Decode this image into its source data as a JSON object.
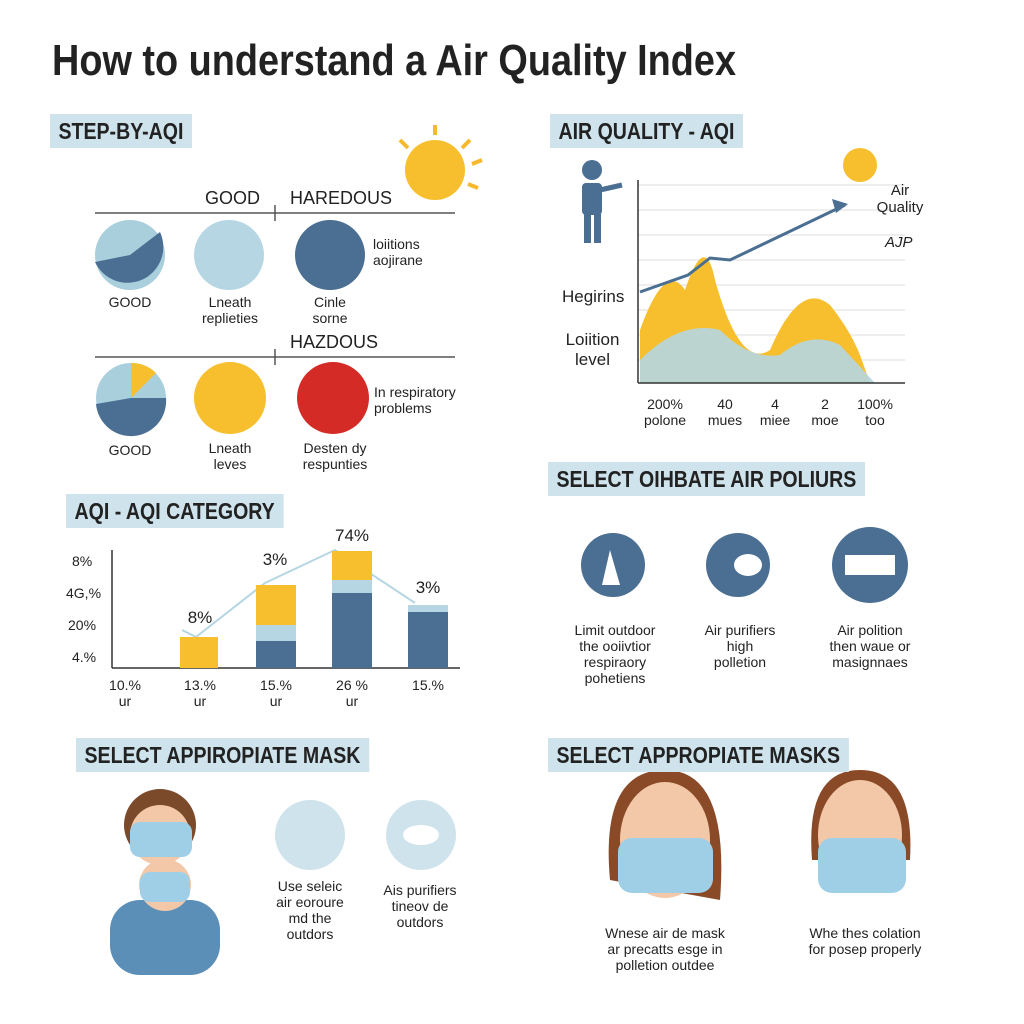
{
  "title": "How to understand a Air Quality Index",
  "step": {
    "heading": "STEP-BY-AQI",
    "scale1": [
      "GOOD",
      "HAREDOUS"
    ],
    "row1": [
      "GOOD",
      "Lneath\nreplieties",
      "Cinle\nsorne",
      "loiitions\naojirane"
    ],
    "scale2": "HAZDOUS",
    "row2": [
      "GOOD",
      "Lneath\nleves",
      "Desten dy\nrespunties",
      "In respiratory\nproblems"
    ]
  },
  "aqi": {
    "heading": "AIR QUALITY - AQI",
    "labels": [
      "Air\nQuality",
      "AJP",
      "Hegirins",
      "Loiition\nlevel"
    ],
    "x": [
      "200%\npolone",
      "40\nmues",
      "4\nmiee",
      "2\nmoe",
      "100%\ntoo"
    ]
  },
  "category": {
    "heading": "AQI - AQI CATEGORY",
    "yticks": [
      "8%",
      "4G,%",
      "20%",
      "4.%"
    ],
    "bar_labels": [
      "8%",
      "3%",
      "74%",
      "3%"
    ],
    "x": [
      "10.%\nur",
      "13.%\nur",
      "15.%\nur",
      "26 %\nur",
      "15.%"
    ]
  },
  "pollutants": {
    "heading": "SELECT OIHBATE AIR POLIURS",
    "items": [
      "Limit outdoor\nthe ooiivtior\nrespiraory\npohetiens",
      "Air purifiers\nhigh\npolletion",
      "Air polition\nthen waue or\nmasignnaes"
    ]
  },
  "mask1": {
    "heading": "SELECT APPIROPIATE MASK",
    "items": [
      "Use seleic\nair eoroure\nmd the\noutdors",
      "Ais purifiers\ntineov de\noutdors"
    ]
  },
  "mask2": {
    "heading": "SELECT APPROPIATE MASKS",
    "items": [
      "Wnese air de mask\nar precatts esge in\npolletion outdee",
      "Whe thes colation\nfor posep properly"
    ]
  }
}
